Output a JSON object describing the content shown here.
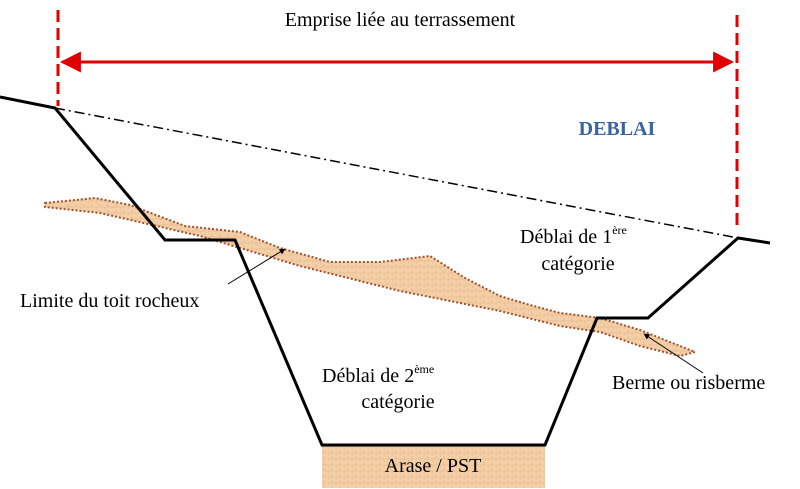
{
  "emprise": "Emprise liée au terrassement",
  "title": "DEBLAI",
  "zones": [
    {
      "label": "Déblai de 1",
      "sup": "ère",
      "line2": "catégorie"
    },
    {
      "label": "Déblai de 2",
      "sup": "ème",
      "line2": "catégorie"
    }
  ],
  "annotations": [
    "Limite du toit rocheux",
    "Berme ou risberme"
  ],
  "base": "Arase / PST"
}
